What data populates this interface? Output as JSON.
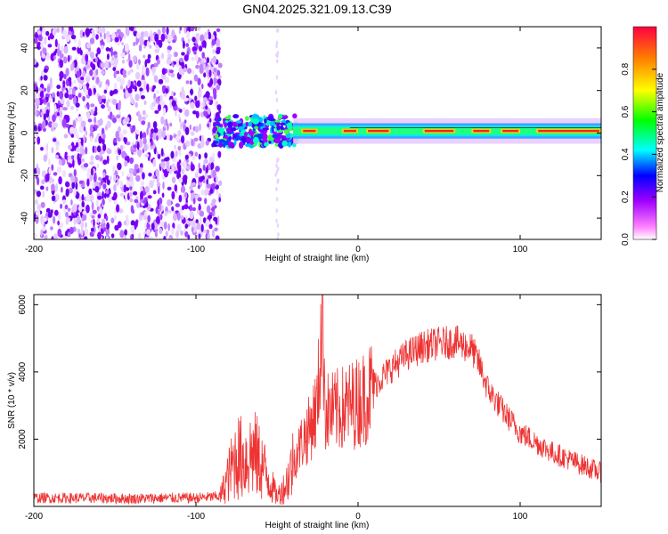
{
  "title": "GN04.2025.321.09.13.C39",
  "chart_data": [
    {
      "type": "heatmap",
      "name": "spectrogram",
      "xlabel": "Height of straight line (km)",
      "ylabel": "Frequency (Hz)",
      "xlim": [
        -200,
        150
      ],
      "ylim": [
        -50,
        50
      ],
      "xticks": [
        -200,
        -100,
        0,
        100
      ],
      "yticks": [
        -40,
        -20,
        0,
        20,
        40
      ],
      "colorbar": {
        "label": "Normalized spectral amplitude",
        "range": [
          0.0,
          1.0
        ],
        "ticks": [
          0.0,
          0.2,
          0.4,
          0.6,
          0.8
        ],
        "colormap": [
          "#ffffff",
          "#ff00ff",
          "#8000ff",
          "#0000ff",
          "#00ffff",
          "#00ff00",
          "#ffff00",
          "#ff8000",
          "#ff0000"
        ]
      },
      "regions": [
        {
          "x": [
            -200,
            -85
          ],
          "description_value": 0.25
        },
        {
          "x": [
            -85,
            -40
          ],
          "freq_center": 0,
          "amplitude": 0.45
        },
        {
          "x": [
            -40,
            150
          ],
          "freq_center": 1,
          "amplitude": 0.95
        }
      ]
    },
    {
      "type": "line",
      "name": "snr",
      "xlabel": "Height of straight line (km)",
      "ylabel": "SNR (10 * v/v)",
      "xlim": [
        -200,
        150
      ],
      "ylim": [
        0,
        6300
      ],
      "xticks": [
        -200,
        -100,
        0,
        100
      ],
      "yticks": [
        2000,
        4000,
        6000
      ],
      "color": "#ee3333",
      "series": [
        {
          "x": [
            -200,
            -180,
            -160,
            -140,
            -120,
            -100,
            -85,
            -80,
            -75,
            -70,
            -65,
            -60,
            -55,
            -50,
            -45,
            -40,
            -35,
            -30,
            -25,
            -22,
            -20,
            -15,
            -10,
            -5,
            0,
            5,
            10,
            20,
            30,
            40,
            50,
            60,
            70,
            75,
            80,
            90,
            100,
            110,
            120,
            130,
            140,
            150
          ],
          "y": [
            250,
            250,
            250,
            230,
            250,
            250,
            300,
            900,
            1500,
            1400,
            1600,
            1300,
            800,
            300,
            600,
            1300,
            1900,
            2300,
            3000,
            6100,
            2800,
            2800,
            2900,
            3000,
            3100,
            3300,
            3600,
            4100,
            4500,
            4750,
            4850,
            4900,
            4700,
            4200,
            3500,
            2800,
            2200,
            1900,
            1600,
            1400,
            1200,
            1000
          ]
        }
      ]
    }
  ]
}
